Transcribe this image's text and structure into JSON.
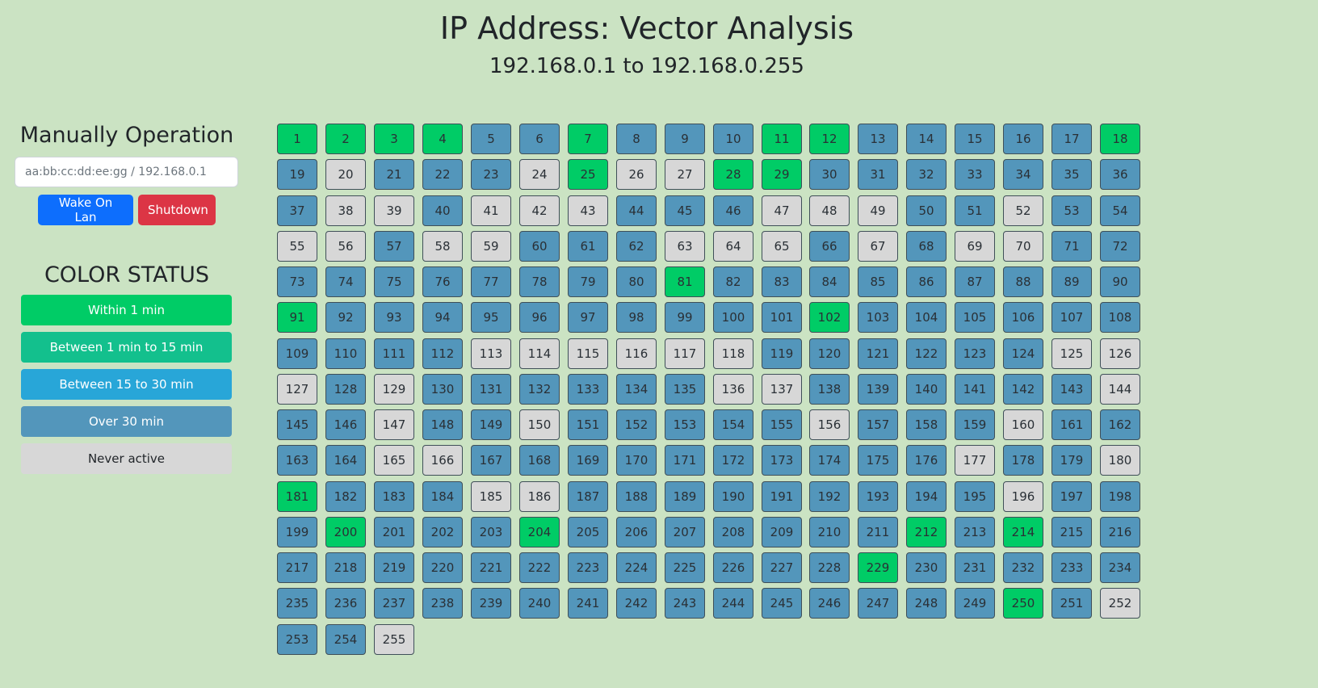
{
  "header": {
    "title": "IP Address: Vector Analysis",
    "range": "192.168.0.1 to 192.168.0.255"
  },
  "manual": {
    "title": "Manually Operation",
    "input_placeholder": "aa:bb:cc:dd:ee:gg / 192.168.0.1",
    "input_value": "",
    "wake_label": "Wake On Lan",
    "shutdown_label": "Shutdown"
  },
  "legend": {
    "title": "COLOR STATUS",
    "items": [
      {
        "label": "Within 1 min",
        "color": "#00cc66",
        "status": "within1"
      },
      {
        "label": "Between 1 min to 15 min",
        "color": "#13c08d",
        "status": "between1_15"
      },
      {
        "label": "Between 15 to 30 min",
        "color": "#28a6d8",
        "status": "between15_30"
      },
      {
        "label": "Over 30 min",
        "color": "#5396bb",
        "status": "over30"
      },
      {
        "label": "Never active",
        "color": "#d7d7d7",
        "status": "never"
      }
    ]
  },
  "grid": {
    "columns": 18,
    "status_colors": {
      "within1": "#00cc66",
      "over30": "#5396bb",
      "never": "#d7d7d7"
    },
    "green_hosts": [
      1,
      2,
      3,
      4,
      7,
      11,
      12,
      18,
      25,
      28,
      29,
      81,
      91,
      102,
      181,
      200,
      204,
      212,
      214,
      229,
      250
    ],
    "gray_hosts": [
      20,
      24,
      26,
      27,
      38,
      39,
      41,
      42,
      43,
      47,
      48,
      49,
      52,
      55,
      56,
      58,
      59,
      63,
      64,
      65,
      67,
      69,
      70,
      113,
      114,
      115,
      116,
      117,
      118,
      125,
      126,
      127,
      129,
      136,
      137,
      144,
      147,
      150,
      156,
      160,
      165,
      166,
      177,
      180,
      185,
      186,
      196,
      252,
      255
    ],
    "first_host": 1,
    "last_host": 255
  }
}
